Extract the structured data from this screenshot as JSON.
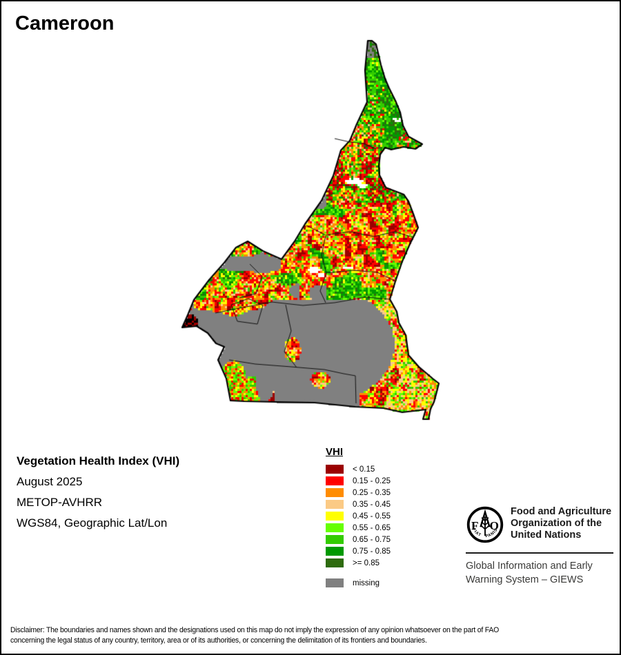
{
  "title": "Cameroon",
  "info": {
    "product": "Vegetation Health Index (VHI)",
    "date": "August 2025",
    "sensor": "METOP-AVHRR",
    "projection": "WGS84, Geographic Lat/Lon"
  },
  "legend": {
    "title": "VHI",
    "items": [
      {
        "label": "< 0.15",
        "color": "#9B0000"
      },
      {
        "label": "0.15 - 0.25",
        "color": "#FF0000"
      },
      {
        "label": "0.25 - 0.35",
        "color": "#FF8C00"
      },
      {
        "label": "0.35 - 0.45",
        "color": "#FBCA85"
      },
      {
        "label": "0.45 - 0.55",
        "color": "#FFFF00"
      },
      {
        "label": "0.55 - 0.65",
        "color": "#66FF00"
      },
      {
        "label": "0.65 - 0.75",
        "color": "#33CC00"
      },
      {
        "label": "0.75 - 0.85",
        "color": "#009900"
      },
      {
        "label": ">= 0.85",
        "color": "#2E6B0E"
      }
    ],
    "missing": {
      "label": "missing",
      "color": "#808080"
    }
  },
  "map": {
    "country": "Cameroon",
    "outline_color": "#000000",
    "admin_line_color": "#111111",
    "cloud_color": "#FFFFFF",
    "background": "#FFFFFF"
  },
  "fao": {
    "emblem": "fao-wheat-emblem",
    "org_lines": [
      "Food and Agriculture",
      "Organization of the",
      "United Nations"
    ],
    "giews_lines": [
      "Global Information and Early",
      "Warning System – GIEWS"
    ]
  },
  "disclaimer": {
    "line1": "Disclaimer: The boundaries and names shown and the designations used on this map do not imply the expression of any opinion whatsoever on the part of FAO",
    "line2": "concerning the legal status of any country, territory, area or of its authorities, or concerning the delimitation of its frontiers and boundaries."
  }
}
